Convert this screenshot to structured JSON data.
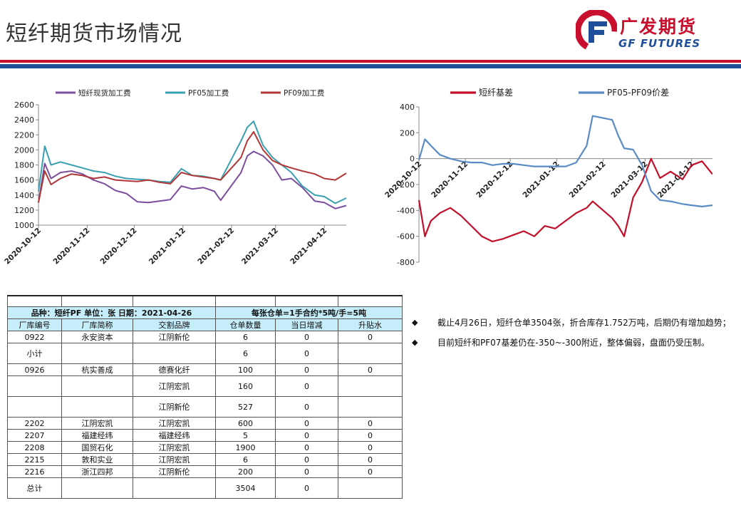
{
  "header": {
    "title": "短纤期货市场情况",
    "logo_cn": "广发期货",
    "logo_en": "GF FUTURES"
  },
  "chart_data": [
    {
      "type": "line",
      "title": "",
      "legend_position": "top",
      "ylim": [
        1000,
        2600
      ],
      "yticks": [
        1000,
        1200,
        1400,
        1600,
        1800,
        2000,
        2200,
        2400,
        2600
      ],
      "xticks": [
        "2020-10-12",
        "2020-11-12",
        "2020-12-12",
        "2021-01-12",
        "2021-02-12",
        "2021-03-12",
        "2021-04-12"
      ],
      "x": [
        "2020-10-12",
        "2020-10-16",
        "2020-10-20",
        "2020-10-26",
        "2020-11-02",
        "2020-11-09",
        "2020-11-16",
        "2020-11-23",
        "2020-11-30",
        "2020-12-07",
        "2020-12-14",
        "2020-12-21",
        "2020-12-28",
        "2021-01-04",
        "2021-01-11",
        "2021-01-18",
        "2021-01-25",
        "2021-02-01",
        "2021-02-05",
        "2021-02-18",
        "2021-02-22",
        "2021-02-26",
        "2021-03-04",
        "2021-03-10",
        "2021-03-16",
        "2021-03-22",
        "2021-03-29",
        "2021-04-06",
        "2021-04-12",
        "2021-04-19",
        "2021-04-26"
      ],
      "series": [
        {
          "name": "短纤现货加工费",
          "color": "#7b4f9d",
          "values": [
            1300,
            1820,
            1620,
            1700,
            1720,
            1680,
            1600,
            1550,
            1460,
            1420,
            1310,
            1300,
            1320,
            1340,
            1520,
            1480,
            1500,
            1450,
            1330,
            1700,
            1920,
            1980,
            1920,
            1800,
            1600,
            1620,
            1500,
            1320,
            1300,
            1220,
            1260
          ]
        },
        {
          "name": "PF05加工费",
          "color": "#3a9fb0",
          "values": [
            1450,
            2050,
            1800,
            1840,
            1800,
            1760,
            1720,
            1700,
            1650,
            1620,
            1610,
            1600,
            1580,
            1570,
            1750,
            1660,
            1650,
            1620,
            1600,
            2120,
            2300,
            2380,
            2060,
            1900,
            1800,
            1700,
            1520,
            1400,
            1380,
            1290,
            1360
          ]
        },
        {
          "name": "PF09加工费",
          "color": "#b03838",
          "values": [
            1300,
            1720,
            1540,
            1620,
            1680,
            1660,
            1620,
            1640,
            1600,
            1590,
            1580,
            1600,
            1570,
            1550,
            1700,
            1660,
            1640,
            1620,
            1600,
            1900,
            2120,
            2240,
            2000,
            1860,
            1800,
            1760,
            1720,
            1680,
            1620,
            1600,
            1690
          ]
        }
      ]
    },
    {
      "type": "line",
      "title": "",
      "legend_position": "top",
      "ylim": [
        -800,
        400
      ],
      "yticks": [
        -800,
        -600,
        -400,
        -200,
        0,
        200,
        400
      ],
      "xticks": [
        "2020-10-12",
        "2020-11-12",
        "2020-12-12",
        "2021-01-12",
        "2021-02-12",
        "2021-03-12",
        "2021-04-12"
      ],
      "x": [
        "2020-10-12",
        "2020-10-16",
        "2020-10-20",
        "2020-10-26",
        "2020-11-02",
        "2020-11-09",
        "2020-11-16",
        "2020-11-23",
        "2020-11-30",
        "2020-12-07",
        "2020-12-14",
        "2020-12-21",
        "2020-12-28",
        "2021-01-04",
        "2021-01-11",
        "2021-01-18",
        "2021-01-25",
        "2021-02-01",
        "2021-02-05",
        "2021-02-18",
        "2021-02-22",
        "2021-02-26",
        "2021-03-04",
        "2021-03-10",
        "2021-03-16",
        "2021-03-22",
        "2021-03-29",
        "2021-04-06",
        "2021-04-12",
        "2021-04-19",
        "2021-04-26"
      ],
      "series": [
        {
          "name": "短纤基差",
          "color": "#c0102a",
          "values": [
            -320,
            -600,
            -480,
            -420,
            -380,
            -440,
            -520,
            -600,
            -640,
            -620,
            -590,
            -560,
            -600,
            -520,
            -540,
            -480,
            -420,
            -380,
            -330,
            -460,
            -520,
            -600,
            -300,
            -180,
            0,
            -150,
            -100,
            -160,
            -50,
            -20,
            -120
          ]
        },
        {
          "name": "PF05-PF09价差",
          "color": "#5a8bc4",
          "values": [
            -10,
            150,
            100,
            30,
            0,
            -20,
            -30,
            -30,
            -50,
            -40,
            -40,
            -50,
            -60,
            -60,
            -60,
            -60,
            -30,
            100,
            330,
            300,
            180,
            80,
            70,
            -50,
            -250,
            -320,
            -330,
            -350,
            -360,
            -370,
            -360
          ]
        }
      ]
    }
  ],
  "table": {
    "title_left": "品种：短纤PF 单位：张 日期：2021-04-26",
    "title_right": "每张仓单=1手合约*5吨/手=5吨",
    "headers": [
      "厂库编号",
      "厂库简称",
      "交割品牌",
      "仓单数量",
      "当日增减",
      "升贴水"
    ],
    "rows": [
      [
        "0922",
        "永安资本",
        "江阴新伦",
        "6",
        "0",
        "0"
      ],
      [
        "小计",
        "",
        "",
        "6",
        "0",
        ""
      ],
      [
        "0926",
        "杭实善成",
        "德赛化纤",
        "100",
        "0",
        "0"
      ],
      [
        "",
        "",
        "江阴宏凯",
        "160",
        "0",
        ""
      ],
      [
        "",
        "",
        "江阴新伦",
        "527",
        "0",
        ""
      ],
      [
        "2202",
        "江阴宏凯",
        "江阴宏凯",
        "600",
        "0",
        "0"
      ],
      [
        "2207",
        "福建经纬",
        "福建经纬",
        "5",
        "0",
        "0"
      ],
      [
        "2208",
        "国贸石化",
        "江阴宏凯",
        "1900",
        "0",
        "0"
      ],
      [
        "2215",
        "敦和实业",
        "江阴宏凯",
        "6",
        "0",
        "0"
      ],
      [
        "2216",
        "浙江四邦",
        "江阴新伦",
        "200",
        "0",
        "0"
      ],
      [
        "总计",
        "",
        "",
        "3504",
        "0",
        ""
      ]
    ]
  },
  "notes": [
    "截止4月26日，短纤仓单3504张，折合库存1.752万吨，后期仍有增加趋势；",
    "目前短纤和PF07基差仍在-350~-300附近，整体偏弱，盘面仍受压制。"
  ],
  "colors": {
    "brand_red": "#c8102e",
    "brand_blue": "#1f4e9a",
    "table_header": "#c6eefa"
  }
}
